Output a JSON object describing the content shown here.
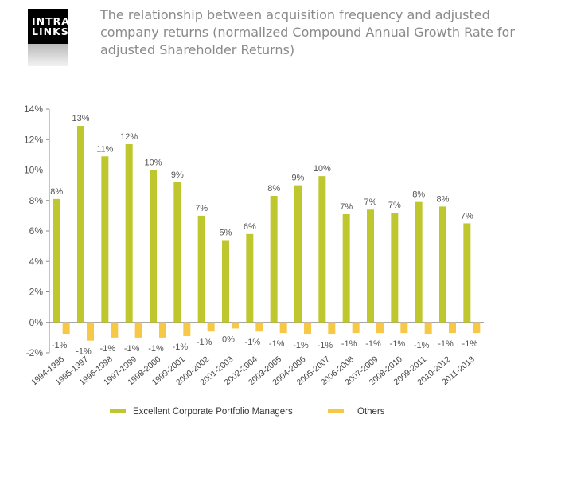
{
  "logo": {
    "line1": "INTRA",
    "line2": "LINKS"
  },
  "title": "The relationship between acquisition frequency and adjusted company returns (normalized Compound Annual Growth Rate for adjusted Shareholder Returns)",
  "colors": {
    "series1": "#bfc72e",
    "series2": "#f7c845",
    "axis": "#888888"
  },
  "chart_data": {
    "type": "bar",
    "title": "The relationship between acquisition frequency and adjusted company returns (normalized Compound Annual Growth Rate for adjusted Shareholder Returns)",
    "xlabel": "",
    "ylabel": "",
    "ylim": [
      -2,
      14
    ],
    "yticks": [
      "-2%",
      "0%",
      "2%",
      "4%",
      "6%",
      "8%",
      "10%",
      "12%",
      "14%"
    ],
    "grid": false,
    "legend_position": "bottom",
    "categories": [
      "1994-1996",
      "1995-1997",
      "1996-1998",
      "1997-1999",
      "1998-2000",
      "1999-2001",
      "2000-2002",
      "2001-2003",
      "2002-2004",
      "2003-2005",
      "2004-2006",
      "2005-2007",
      "2006-2008",
      "2007-2009",
      "2008-2010",
      "2009-2011",
      "2010-2012",
      "2011-2013"
    ],
    "series": [
      {
        "name": "Excellent Corporate Portfolio Managers",
        "values": [
          8.1,
          12.9,
          10.9,
          11.7,
          10.0,
          9.2,
          7.0,
          5.4,
          5.8,
          8.3,
          9.0,
          9.6,
          7.1,
          7.4,
          7.2,
          7.9,
          7.6,
          6.5
        ],
        "labels": [
          "8%",
          "13%",
          "11%",
          "12%",
          "10%",
          "9%",
          "7%",
          "5%",
          "6%",
          "8%",
          "9%",
          "10%",
          "7%",
          "7%",
          "7%",
          "8%",
          "8%",
          "7%"
        ]
      },
      {
        "name": "Others",
        "values": [
          -0.8,
          -1.2,
          -1.0,
          -1.0,
          -1.0,
          -0.9,
          -0.6,
          -0.4,
          -0.6,
          -0.7,
          -0.8,
          -0.8,
          -0.7,
          -0.7,
          -0.7,
          -0.8,
          -0.7,
          -0.7
        ],
        "labels": [
          "-1%",
          "-1%",
          "-1%",
          "-1%",
          "-1%",
          "-1%",
          "-1%",
          "0%",
          "-1%",
          "-1%",
          "-1%",
          "-1%",
          "-1%",
          "-1%",
          "-1%",
          "-1%",
          "-1%",
          "-1%"
        ]
      }
    ]
  }
}
